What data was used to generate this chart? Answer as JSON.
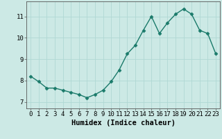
{
  "x": [
    0,
    1,
    2,
    3,
    4,
    5,
    6,
    7,
    8,
    9,
    10,
    11,
    12,
    13,
    14,
    15,
    16,
    17,
    18,
    19,
    20,
    21,
    22,
    23
  ],
  "y": [
    8.2,
    7.95,
    7.65,
    7.65,
    7.55,
    7.45,
    7.35,
    7.2,
    7.35,
    7.55,
    7.95,
    8.5,
    9.25,
    9.65,
    10.35,
    11.0,
    10.2,
    10.7,
    11.1,
    11.35,
    11.1,
    10.35,
    10.2,
    9.25
  ],
  "line_color": "#1a7a6a",
  "marker": "D",
  "markersize": 2.5,
  "linewidth": 1.0,
  "bg_color": "#cce9e5",
  "grid_color": "#b0d8d4",
  "xlabel": "Humidex (Indice chaleur)",
  "xlabel_fontsize": 7.5,
  "xtick_labels": [
    "0",
    "1",
    "2",
    "3",
    "4",
    "5",
    "6",
    "7",
    "8",
    "9",
    "10",
    "11",
    "12",
    "13",
    "14",
    "15",
    "16",
    "17",
    "18",
    "19",
    "20",
    "21",
    "22",
    "23"
  ],
  "ytick_labels": [
    "7",
    "8",
    "9",
    "10",
    "11"
  ],
  "ytick_values": [
    7,
    8,
    9,
    10,
    11
  ],
  "xlim": [
    -0.5,
    23.5
  ],
  "ylim": [
    6.7,
    11.7
  ],
  "tick_fontsize": 6.5
}
